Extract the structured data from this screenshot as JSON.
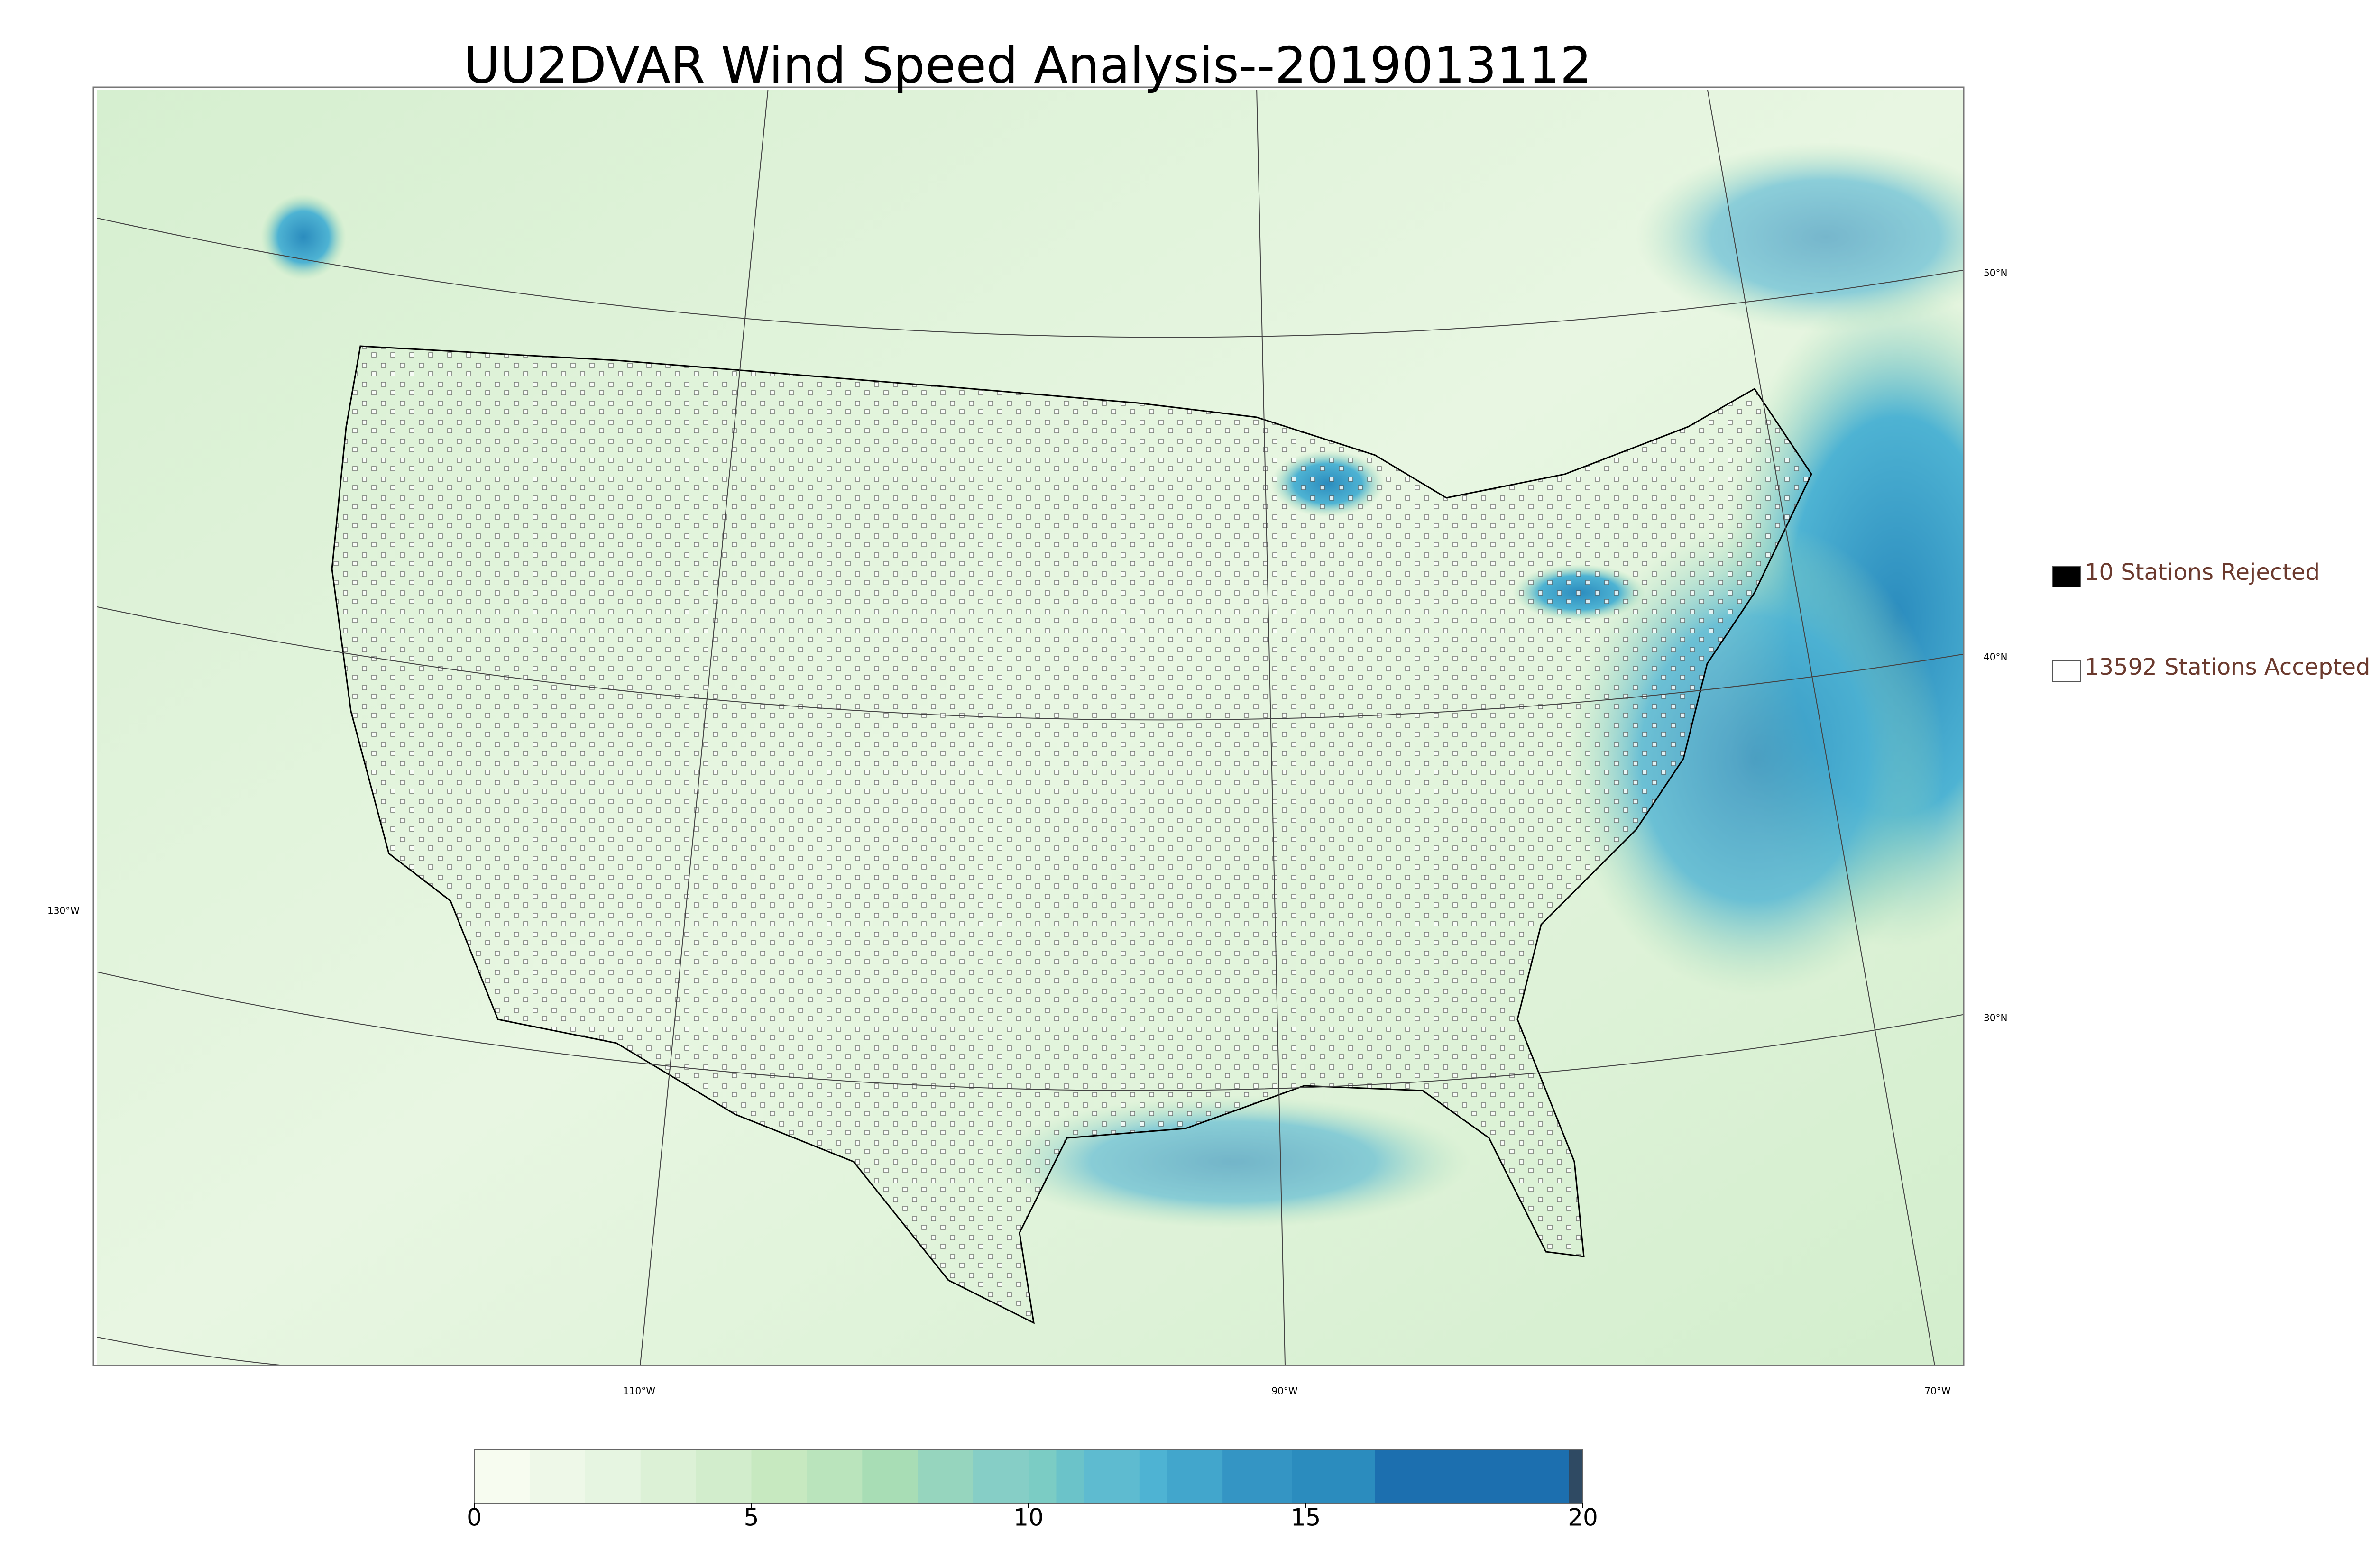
{
  "title": "UU2DVAR Wind Speed Analysis--2019013112",
  "legend": [
    {
      "label": "10 Stations Rejected",
      "color": "#000000"
    },
    {
      "label": "13592 Stations Accepted",
      "color": "#ffffff"
    }
  ],
  "graticule": {
    "lat_labels": [
      "50°N",
      "40°N",
      "30°N"
    ],
    "lon_labels": [
      "130°W",
      "110°W",
      "90°W",
      "70°W"
    ]
  },
  "colorbar": {
    "lim": [
      0,
      20
    ],
    "ticks": [
      0,
      5,
      10,
      15,
      20
    ],
    "bounds": [
      0,
      1,
      2,
      3,
      4,
      5,
      6,
      7,
      8,
      9,
      10,
      10.5,
      11,
      12,
      12.5,
      13.5,
      14.75,
      16.25,
      19.75,
      20
    ],
    "colors": [
      "#f7fcf0",
      "#eef8e8",
      "#e6f5e1",
      "#dcf1d6",
      "#d2edcc",
      "#c7e9c0",
      "#bae4bc",
      "#a8ddb5",
      "#96d5be",
      "#86cec6",
      "#7bccc4",
      "#6bc3c9",
      "#5ebbd0",
      "#4eb3d3",
      "#42a6cc",
      "#3495c4",
      "#2b8cbe",
      "#1c6faf",
      "#2f4a63"
    ]
  }
}
